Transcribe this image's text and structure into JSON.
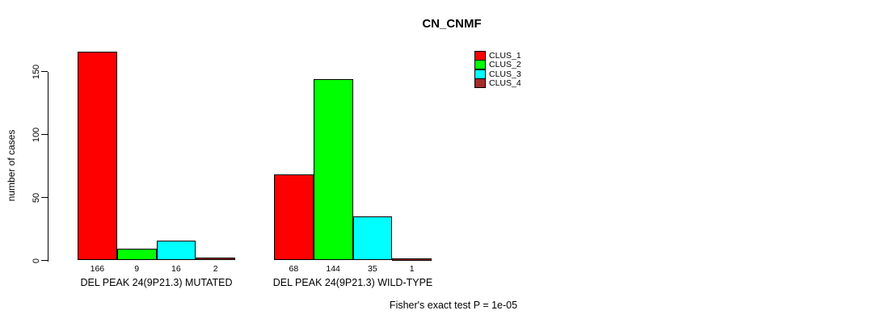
{
  "title": "CN_CNMF",
  "ylabel": "number of cases",
  "footer": "Fisher's exact test P = 1e-05",
  "chart_data": {
    "type": "bar",
    "title": "CN_CNMF",
    "xlabel": "",
    "ylabel": "number of cases",
    "ylim": [
      0,
      166
    ],
    "yticks": [
      0,
      50,
      100,
      150
    ],
    "grid": false,
    "legend_position": "top-right",
    "categories": [
      "DEL PEAK 24(9P21.3) MUTATED",
      "DEL PEAK 24(9P21.3) WILD-TYPE"
    ],
    "series": [
      {
        "name": "CLUS_1",
        "color": "#ff0000",
        "values": [
          166,
          68
        ]
      },
      {
        "name": "CLUS_2",
        "color": "#00ff00",
        "values": [
          9,
          144
        ]
      },
      {
        "name": "CLUS_3",
        "color": "#00ffff",
        "values": [
          16,
          35
        ]
      },
      {
        "name": "CLUS_4",
        "color": "#a52a2a",
        "values": [
          2,
          1
        ]
      }
    ],
    "bar_value_labels": [
      [
        "166",
        "9",
        "16",
        "2"
      ],
      [
        "68",
        "144",
        "35",
        "1"
      ]
    ],
    "bar_border_color": "#000000",
    "annotation": "Fisher's exact test P = 1e-05"
  }
}
